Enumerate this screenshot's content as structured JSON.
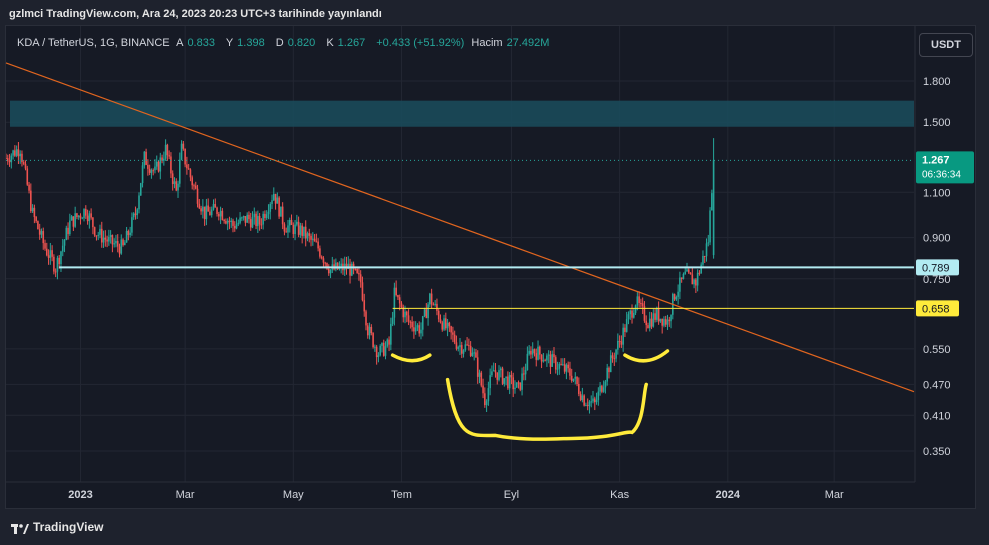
{
  "header": {
    "published": "gzlmci TradingView.com, Ara 24, 2023 20:23 UTC+3 tarihinde yayınlandı"
  },
  "legend": {
    "symbol": "KDA / TetherUS, 1G, BINANCE",
    "open_label": "A",
    "open": "0.833",
    "high_label": "Y",
    "high": "1.398",
    "low_label": "D",
    "low": "0.820",
    "close_label": "K",
    "close": "1.267",
    "change": "+0.433 (+51.92%)",
    "volume_label": "Hacim",
    "volume": "27.492M"
  },
  "currency": "USDT",
  "footer": {
    "brand": "TradingView"
  },
  "colors": {
    "up": "#26a69a",
    "down": "#ef5350",
    "trendline": "#e0651f",
    "supply_zone": "#1a4a5a",
    "support": "#b2ebf2",
    "neckline": "#ffeb3b",
    "pattern": "#ffeb3b",
    "last_price_bg": "#089981"
  },
  "chart_data": {
    "type": "candlestick",
    "scale": "log",
    "ylim": [
      0.3,
      2.2
    ],
    "y_ticks": [
      "1.800",
      "1.500",
      "1.100",
      "0.900",
      "0.750",
      "0.550",
      "0.470",
      "0.410",
      "0.350"
    ],
    "y_tick_values": [
      1.8,
      1.5,
      1.1,
      0.9,
      0.75,
      0.55,
      0.47,
      0.41,
      0.35
    ],
    "x_ticks": [
      "2023",
      "Mar",
      "May",
      "Tem",
      "Eyl",
      "Kas",
      "2024",
      "Mar"
    ],
    "x_tick_dates": [
      "2023-01-01",
      "2023-03-01",
      "2023-05-01",
      "2023-07-01",
      "2023-09-01",
      "2023-11-01",
      "2024-01-01",
      "2024-03-01"
    ],
    "x_range": [
      "2022-11-20",
      "2024-04-15"
    ],
    "last_price": {
      "value": "1.267",
      "countdown": "06:36:34",
      "y": 1.267
    },
    "price_labels": [
      {
        "value": "0.789",
        "y": 0.789,
        "kind": "support"
      },
      {
        "value": "0.658",
        "y": 0.658,
        "kind": "neckline"
      }
    ],
    "ohlc_path": [
      [
        "2022-11-20",
        1.28
      ],
      [
        "2022-11-28",
        1.34
      ],
      [
        "2022-12-05",
        1.0
      ],
      [
        "2022-12-12",
        0.86
      ],
      [
        "2022-12-18",
        0.79
      ],
      [
        "2022-12-26",
        0.96
      ],
      [
        "2023-01-04",
        1.02
      ],
      [
        "2023-01-10",
        0.92
      ],
      [
        "2023-01-18",
        0.88
      ],
      [
        "2023-01-25",
        0.86
      ],
      [
        "2023-02-01",
        1.0
      ],
      [
        "2023-02-06",
        1.28
      ],
      [
        "2023-02-12",
        1.2
      ],
      [
        "2023-02-18",
        1.33
      ],
      [
        "2023-02-24",
        1.1
      ],
      [
        "2023-02-27",
        1.33
      ],
      [
        "2023-03-05",
        1.15
      ],
      [
        "2023-03-12",
        1.0
      ],
      [
        "2023-03-20",
        1.02
      ],
      [
        "2023-03-28",
        0.95
      ],
      [
        "2023-04-05",
        0.98
      ],
      [
        "2023-04-12",
        0.96
      ],
      [
        "2023-04-20",
        1.1
      ],
      [
        "2023-04-26",
        0.95
      ],
      [
        "2023-05-05",
        0.93
      ],
      [
        "2023-05-15",
        0.86
      ],
      [
        "2023-05-22",
        0.78
      ],
      [
        "2023-06-01",
        0.79
      ],
      [
        "2023-06-08",
        0.74
      ],
      [
        "2023-06-12",
        0.6
      ],
      [
        "2023-06-18",
        0.54
      ],
      [
        "2023-06-24",
        0.56
      ],
      [
        "2023-06-27",
        0.7
      ],
      [
        "2023-07-05",
        0.62
      ],
      [
        "2023-07-12",
        0.6
      ],
      [
        "2023-07-17",
        0.69
      ],
      [
        "2023-07-25",
        0.61
      ],
      [
        "2023-08-02",
        0.56
      ],
      [
        "2023-08-10",
        0.55
      ],
      [
        "2023-08-17",
        0.44
      ],
      [
        "2023-08-22",
        0.5
      ],
      [
        "2023-08-29",
        0.48
      ],
      [
        "2023-09-05",
        0.46
      ],
      [
        "2023-09-12",
        0.55
      ],
      [
        "2023-09-20",
        0.53
      ],
      [
        "2023-09-28",
        0.51
      ],
      [
        "2023-10-05",
        0.49
      ],
      [
        "2023-10-12",
        0.44
      ],
      [
        "2023-10-18",
        0.43
      ],
      [
        "2023-10-25",
        0.5
      ],
      [
        "2023-11-02",
        0.58
      ],
      [
        "2023-11-10",
        0.68
      ],
      [
        "2023-11-17",
        0.62
      ],
      [
        "2023-11-22",
        0.64
      ],
      [
        "2023-11-28",
        0.62
      ],
      [
        "2023-12-02",
        0.7
      ],
      [
        "2023-12-08",
        0.76
      ],
      [
        "2023-12-14",
        0.74
      ],
      [
        "2023-12-18",
        0.82
      ],
      [
        "2023-12-21",
        0.89
      ],
      [
        "2023-12-24",
        1.267
      ]
    ],
    "annotations": {
      "supply_zone": {
        "x_from": "2022-11-20",
        "x_to": "2024-04-15",
        "y_low": 1.47,
        "y_high": 1.65
      },
      "support_line": {
        "x_from": "2022-12-20",
        "x_to": "2024-01-08",
        "y": 0.789
      },
      "neckline": {
        "x_from": "2023-06-26",
        "x_to": "2024-01-08",
        "y": 0.658
      },
      "trendline": {
        "from": [
          "2022-11-20",
          1.95
        ],
        "to": [
          "2024-04-15",
          0.455
        ]
      },
      "left_shoulder": [
        [
          "2023-06-26",
          0.535
        ],
        [
          "2023-07-07",
          0.522
        ],
        [
          "2023-07-17",
          0.535
        ]
      ],
      "head": [
        [
          "2023-07-27",
          0.48
        ],
        [
          "2023-08-23",
          0.375
        ],
        [
          "2023-10-05",
          0.37
        ],
        [
          "2023-11-08",
          0.38
        ],
        [
          "2023-11-16",
          0.47
        ]
      ],
      "right_shoulder": [
        [
          "2023-11-04",
          0.535
        ],
        [
          "2023-11-16",
          0.522
        ],
        [
          "2023-11-28",
          0.545
        ]
      ]
    }
  }
}
